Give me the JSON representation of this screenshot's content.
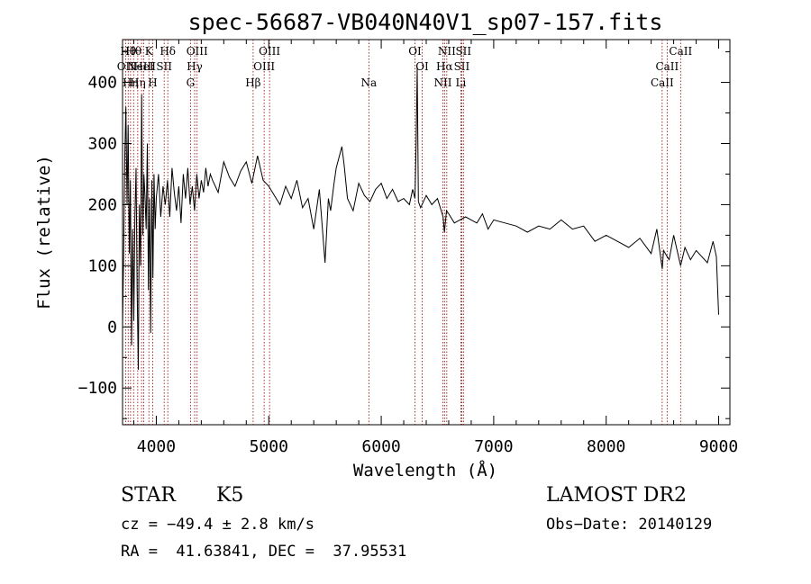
{
  "chart_data": {
    "type": "line",
    "title": "spec-56687-VB040N40V1_sp07-157.fits",
    "xlabel": "Wavelength (Å)",
    "ylabel": "Flux (relative)",
    "xlim": [
      3700,
      9100
    ],
    "ylim": [
      -160,
      470
    ],
    "x_ticks": [
      4000,
      5000,
      6000,
      7000,
      8000,
      9000
    ],
    "y_ticks": [
      -100,
      0,
      100,
      200,
      300,
      400
    ],
    "grid": false,
    "legend": "none",
    "line_color": "#000000",
    "marker_line_color": "#8b0000",
    "series": [
      {
        "x": [
          3700,
          3710,
          3720,
          3730,
          3740,
          3750,
          3760,
          3770,
          3780,
          3790,
          3800,
          3810,
          3820,
          3830,
          3840,
          3850,
          3860,
          3870,
          3880,
          3890,
          3900,
          3910,
          3920,
          3930,
          3940,
          3950,
          3960,
          3970,
          3980,
          3990,
          4000,
          4020,
          4040,
          4060,
          4080,
          4100,
          4120,
          4140,
          4160,
          4180,
          4200,
          4220,
          4240,
          4260,
          4280,
          4300,
          4320,
          4340,
          4360,
          4380,
          4400,
          4420,
          4440,
          4460,
          4480,
          4500,
          4550,
          4600,
          4650,
          4700,
          4750,
          4800,
          4850,
          4900,
          4950,
          5000,
          5050,
          5100,
          5150,
          5200,
          5250,
          5300,
          5350,
          5400,
          5450,
          5500,
          5530,
          5550,
          5580,
          5600,
          5650,
          5670,
          5700,
          5750,
          5800,
          5850,
          5900,
          5950,
          6000,
          6050,
          6100,
          6150,
          6200,
          6250,
          6280,
          6300,
          6310,
          6320,
          6330,
          6350,
          6400,
          6450,
          6500,
          6550,
          6562,
          6580,
          6600,
          6650,
          6700,
          6750,
          6800,
          6850,
          6900,
          6950,
          7000,
          7100,
          7200,
          7300,
          7400,
          7500,
          7600,
          7700,
          7800,
          7900,
          8000,
          8100,
          8200,
          8300,
          8400,
          8450,
          8498,
          8510,
          8542,
          8560,
          8600,
          8662,
          8700,
          8750,
          8800,
          8850,
          8900,
          8950,
          8980,
          9000
        ],
        "values": [
          0,
          120,
          280,
          360,
          200,
          330,
          120,
          240,
          -30,
          160,
          10,
          180,
          260,
          60,
          -70,
          200,
          100,
          380,
          150,
          250,
          210,
          160,
          300,
          60,
          210,
          -10,
          240,
          80,
          250,
          160,
          210,
          250,
          180,
          230,
          200,
          240,
          180,
          260,
          220,
          190,
          230,
          170,
          250,
          210,
          260,
          200,
          230,
          190,
          250,
          210,
          240,
          220,
          260,
          230,
          250,
          240,
          220,
          270,
          245,
          230,
          255,
          270,
          235,
          280,
          240,
          230,
          215,
          200,
          230,
          210,
          240,
          195,
          210,
          160,
          225,
          105,
          210,
          190,
          235,
          260,
          295,
          265,
          210,
          190,
          235,
          215,
          205,
          225,
          235,
          210,
          225,
          205,
          210,
          200,
          225,
          210,
          300,
          425,
          205,
          195,
          215,
          200,
          210,
          180,
          155,
          190,
          185,
          170,
          175,
          180,
          175,
          170,
          185,
          160,
          175,
          170,
          165,
          155,
          165,
          160,
          175,
          160,
          165,
          140,
          150,
          140,
          130,
          145,
          120,
          160,
          95,
          125,
          115,
          110,
          150,
          100,
          130,
          110,
          125,
          115,
          105,
          140,
          115,
          20
        ]
      }
    ],
    "line_markers": [
      {
        "wl": 3727,
        "label": "OII",
        "row": 2
      },
      {
        "wl": 3750,
        "label": "Hθ",
        "row": 1
      },
      {
        "wl": 3771,
        "label": "Hη",
        "row": 3
      },
      {
        "wl": 3798,
        "label": "Hθ",
        "row": 1
      },
      {
        "wl": 3835,
        "label": "Hη",
        "row": 3
      },
      {
        "wl": 3869,
        "label": "NeIII",
        "row": 2
      },
      {
        "wl": 3889,
        "label": "HeI",
        "row": 2
      },
      {
        "wl": 3934,
        "label": "K",
        "row": 1
      },
      {
        "wl": 3968,
        "label": "H",
        "row": 3
      },
      {
        "wl": 4070,
        "label": "SII",
        "row": 2
      },
      {
        "wl": 4102,
        "label": "Hδ",
        "row": 1
      },
      {
        "wl": 4304,
        "label": "G",
        "row": 3
      },
      {
        "wl": 4341,
        "label": "Hγ",
        "row": 2
      },
      {
        "wl": 4363,
        "label": "OIII",
        "row": 1
      },
      {
        "wl": 4861,
        "label": "Hβ",
        "row": 3
      },
      {
        "wl": 4959,
        "label": "OIII",
        "row": 2
      },
      {
        "wl": 5007,
        "label": "OIII",
        "row": 1
      },
      {
        "wl": 5890,
        "label": "Na",
        "row": 3
      },
      {
        "wl": 6300,
        "label": "OI",
        "row": 1
      },
      {
        "wl": 6364,
        "label": "OI",
        "row": 2
      },
      {
        "wl": 6548,
        "label": "NII",
        "row": 3
      },
      {
        "wl": 6563,
        "label": "Hα",
        "row": 2
      },
      {
        "wl": 6583,
        "label": "NII",
        "row": 1
      },
      {
        "wl": 6708,
        "label": "Li",
        "row": 3
      },
      {
        "wl": 6716,
        "label": "SII",
        "row": 2
      },
      {
        "wl": 6731,
        "label": "SII",
        "row": 1
      },
      {
        "wl": 8498,
        "label": "CaII",
        "row": 3
      },
      {
        "wl": 8542,
        "label": "CaII",
        "row": 2
      },
      {
        "wl": 8662,
        "label": "CaII",
        "row": 1
      }
    ]
  },
  "info": {
    "class": "STAR",
    "subclass": "K5",
    "survey": "LAMOST DR2",
    "cz": "cz = −49.4 ± 2.8 km/s",
    "obs_date": "Obs−Date: 20140129",
    "coords": "RA =  41.63841, DEC =  37.95531"
  }
}
